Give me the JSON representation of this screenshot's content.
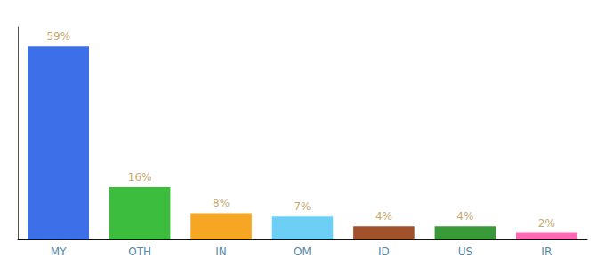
{
  "chart_data": {
    "type": "bar",
    "categories": [
      "MY",
      "OTH",
      "IN",
      "OM",
      "ID",
      "US",
      "IR"
    ],
    "values": [
      59,
      16,
      8,
      7,
      4,
      4,
      2
    ],
    "value_labels": [
      "59%",
      "16%",
      "8%",
      "7%",
      "4%",
      "4%",
      "2%"
    ],
    "colors": [
      "#3d6fe8",
      "#3dbd3d",
      "#f5a623",
      "#6ecff6",
      "#a0522d",
      "#3a9a3a",
      "#ff69b4"
    ],
    "ylim": [
      0,
      65
    ],
    "grid": false,
    "data_labels": true,
    "tick_labels": "x"
  }
}
